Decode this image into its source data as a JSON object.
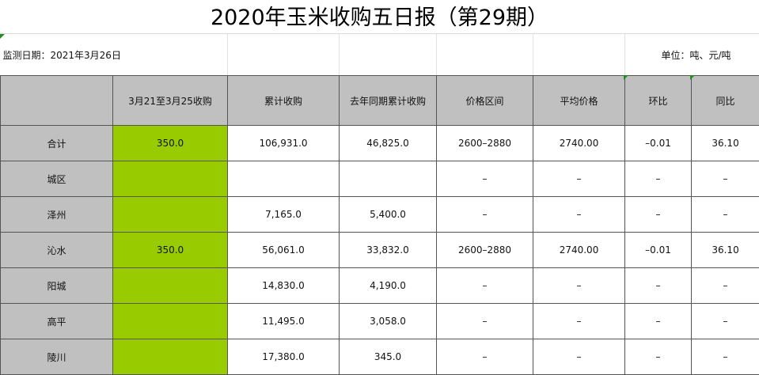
{
  "title": "2020年玉米收购五日报（第29期）",
  "monitor_date": "监测日期：2021年3月26日",
  "unit": "单位：吨、元/吨",
  "columns": [
    "",
    "3月21至3月25收购",
    "累计收购",
    "去年同期累计收购",
    "价格区间",
    "平均价格",
    "环比",
    "同比"
  ],
  "rows": [
    {
      "region": "合计",
      "weekly": "350.0",
      "cumulative": "106,931.0",
      "last_year": "46,825.0",
      "price_range": "2600–2880",
      "avg_price": "2740.00",
      "mom": "–0.01",
      "yoy": "36.10"
    },
    {
      "region": "城区",
      "weekly": "",
      "cumulative": "",
      "last_year": "",
      "price_range": "–",
      "avg_price": "–",
      "mom": "–",
      "yoy": "–"
    },
    {
      "region": "泽州",
      "weekly": "",
      "cumulative": "7,165.0",
      "last_year": "5,400.0",
      "price_range": "–",
      "avg_price": "–",
      "mom": "–",
      "yoy": "–"
    },
    {
      "region": "沁水",
      "weekly": "350.0",
      "cumulative": "56,061.0",
      "last_year": "33,832.0",
      "price_range": "2600–2880",
      "avg_price": "2740.00",
      "mom": "–0.01",
      "yoy": "36.10"
    },
    {
      "region": "阳城",
      "weekly": "",
      "cumulative": "14,830.0",
      "last_year": "4,190.0",
      "price_range": "–",
      "avg_price": "–",
      "mom": "–",
      "yoy": "–"
    },
    {
      "region": "高平",
      "weekly": "",
      "cumulative": "11,495.0",
      "last_year": "3,058.0",
      "price_range": "–",
      "avg_price": "–",
      "mom": "–",
      "yoy": "–"
    },
    {
      "region": "陵川",
      "weekly": "",
      "cumulative": "17,380.0",
      "last_year": "345.0",
      "price_range": "–",
      "avg_price": "–",
      "mom": "–",
      "yoy": "–"
    }
  ],
  "colors": {
    "header_bg": "#c0c0c0",
    "weekly_fill": "#99cc00",
    "grid_line": "#555555"
  }
}
